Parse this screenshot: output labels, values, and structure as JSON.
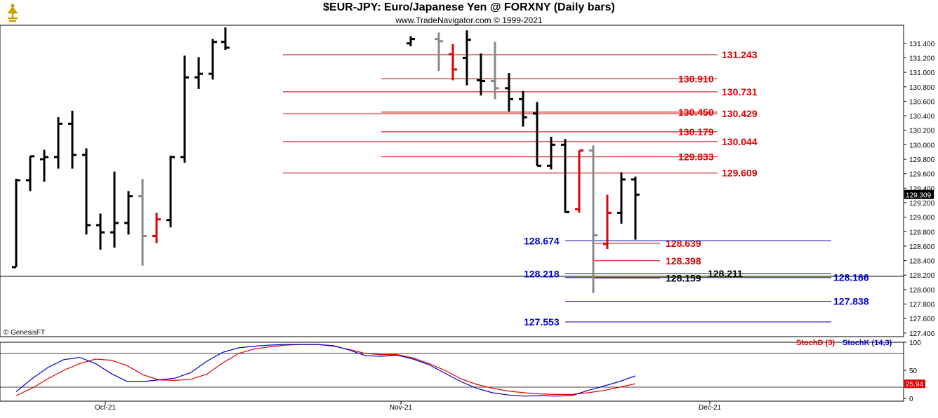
{
  "header": {
    "title": "$EUR-JPY:  Euro/Japanese Yen @ FORXNY  (Daily bars)",
    "subtitle": "www.TradeNavigator.com © 1999-2021",
    "copyright": "© GenesisFT"
  },
  "colors": {
    "bar_up": "#000000",
    "bar_highlight_red": "#e00000",
    "bar_gray": "#888888",
    "red_level": "#c00000",
    "blue_level": "#0000a0",
    "stoch_d": "#e00000",
    "stoch_k": "#0000c8"
  },
  "chart_data": [
    {
      "type": "ohlc",
      "title": "$EUR-JPY:  Euro/Japanese Yen @ FORXNY  (Daily bars)",
      "y_axis": {
        "position": "right",
        "range": [
          127.35,
          131.65
        ],
        "tick_labels": [
          "127.400",
          "127.600",
          "127.800",
          "128.000",
          "128.200",
          "128.400",
          "128.600",
          "128.800",
          "129.000",
          "129.200",
          "129.400",
          "129.600",
          "129.800",
          "130.000",
          "130.200",
          "130.400",
          "130.600",
          "130.800",
          "131.000",
          "131.200",
          "131.400"
        ]
      },
      "x_axis": {
        "tick_labels": [
          "Oct-21",
          "Nov-21",
          "Dec-21"
        ]
      },
      "last_price": "129.309",
      "bars": [
        {
          "o": 128.31,
          "h": 129.53,
          "l": 128.31,
          "c": 129.51,
          "color": "black"
        },
        {
          "o": 129.51,
          "h": 129.84,
          "l": 129.36,
          "c": 129.84,
          "color": "black"
        },
        {
          "o": 129.8,
          "h": 129.93,
          "l": 129.49,
          "c": 129.83,
          "color": "black"
        },
        {
          "o": 129.83,
          "h": 130.38,
          "l": 129.67,
          "c": 130.29,
          "color": "black"
        },
        {
          "o": 130.29,
          "h": 130.47,
          "l": 129.67,
          "c": 129.86,
          "color": "black"
        },
        {
          "o": 129.86,
          "h": 129.95,
          "l": 128.76,
          "c": 128.89,
          "color": "black"
        },
        {
          "o": 128.89,
          "h": 129.05,
          "l": 128.55,
          "c": 128.79,
          "color": "black"
        },
        {
          "o": 128.79,
          "h": 129.63,
          "l": 128.58,
          "c": 128.92,
          "color": "black"
        },
        {
          "o": 128.92,
          "h": 129.36,
          "l": 128.76,
          "c": 129.29,
          "color": "black"
        },
        {
          "o": 129.29,
          "h": 129.53,
          "l": 128.33,
          "c": 128.74,
          "color": "gray"
        },
        {
          "o": 128.74,
          "h": 129.06,
          "l": 128.64,
          "c": 128.97,
          "color": "red"
        },
        {
          "o": 128.96,
          "h": 129.85,
          "l": 128.86,
          "c": 129.83,
          "color": "black"
        },
        {
          "o": 129.83,
          "h": 131.23,
          "l": 129.75,
          "c": 130.93,
          "color": "black"
        },
        {
          "o": 130.93,
          "h": 131.21,
          "l": 130.77,
          "c": 130.98,
          "color": "black"
        },
        {
          "o": 130.98,
          "h": 131.46,
          "l": 130.9,
          "c": 131.42,
          "color": "black"
        },
        {
          "o": 131.42,
          "h": 131.62,
          "l": 131.31,
          "c": 131.34,
          "color": "black"
        },
        {
          "o": 131.4,
          "h": 131.5,
          "l": 131.36,
          "c": 131.46,
          "color": "black"
        },
        {
          "o": 131.46,
          "h": 131.55,
          "l": 131.02,
          "c": 131.43,
          "color": "gray"
        },
        {
          "o": 131.25,
          "h": 131.39,
          "l": 130.89,
          "c": 131.04,
          "color": "red"
        },
        {
          "o": 131.2,
          "h": 131.58,
          "l": 130.82,
          "c": 131.45,
          "color": "black"
        },
        {
          "o": 130.89,
          "h": 131.26,
          "l": 130.68,
          "c": 130.88,
          "color": "black"
        },
        {
          "o": 130.88,
          "h": 131.42,
          "l": 130.63,
          "c": 130.78,
          "color": "gray"
        },
        {
          "o": 130.78,
          "h": 130.99,
          "l": 130.46,
          "c": 130.63,
          "color": "black"
        },
        {
          "o": 130.63,
          "h": 130.74,
          "l": 130.25,
          "c": 130.38,
          "color": "black"
        },
        {
          "o": 130.43,
          "h": 130.59,
          "l": 129.71,
          "c": 129.71,
          "color": "black"
        },
        {
          "o": 129.71,
          "h": 130.11,
          "l": 129.66,
          "c": 130.0,
          "color": "black"
        },
        {
          "o": 130.0,
          "h": 130.08,
          "l": 129.06,
          "c": 129.07,
          "color": "black"
        },
        {
          "o": 129.11,
          "h": 129.92,
          "l": 129.06,
          "c": 129.92,
          "color": "red"
        },
        {
          "o": 129.92,
          "h": 129.99,
          "l": 127.95,
          "c": 128.75,
          "color": "gray"
        },
        {
          "o": 128.63,
          "h": 129.31,
          "l": 128.56,
          "c": 129.06,
          "color": "red"
        },
        {
          "o": 129.06,
          "h": 129.62,
          "l": 128.91,
          "c": 129.52,
          "color": "black"
        },
        {
          "o": 129.52,
          "h": 129.56,
          "l": 128.69,
          "c": 129.31,
          "color": "black"
        }
      ],
      "red_levels": [
        "131.243",
        "130.910",
        "130.731",
        "130.450",
        "130.429",
        "130.179",
        "130.044",
        "129.833",
        "129.609",
        "128.639",
        "128.398",
        "128.159"
      ],
      "blue_levels": [
        "128.674",
        "128.218",
        "128.166",
        "127.838",
        "127.553"
      ],
      "other_labels": [
        "128.211"
      ],
      "grid": false
    },
    {
      "type": "line",
      "title": "Stochastic",
      "legend": [
        "StochD (3)",
        "StochK (14,3)"
      ],
      "y_axis": {
        "range": [
          0,
          100
        ],
        "tick_labels": [
          "0",
          "50",
          "100"
        ],
        "reference_lines": [
          80,
          20
        ]
      },
      "series": [
        {
          "name": "StochD (3)",
          "color": "#e00000",
          "last": "25.94",
          "values": [
            5,
            18,
            35,
            50,
            62,
            70,
            68,
            58,
            42,
            33,
            32,
            34,
            43,
            63,
            80,
            88,
            92,
            95,
            96,
            96,
            93,
            87,
            80,
            78,
            78,
            72,
            62,
            50,
            35,
            25,
            18,
            13,
            10,
            8,
            7,
            7,
            10,
            14,
            20,
            26
          ]
        },
        {
          "name": "StochK (14,3)",
          "color": "#0000c8",
          "values": [
            12,
            35,
            55,
            69,
            73,
            62,
            44,
            30,
            30,
            33,
            36,
            46,
            66,
            82,
            90,
            93,
            95,
            96,
            96,
            96,
            94,
            86,
            76,
            75,
            77,
            70,
            60,
            45,
            30,
            18,
            10,
            6,
            4,
            5,
            4,
            5,
            14,
            22,
            30,
            40
          ]
        }
      ],
      "grid": false
    }
  ]
}
